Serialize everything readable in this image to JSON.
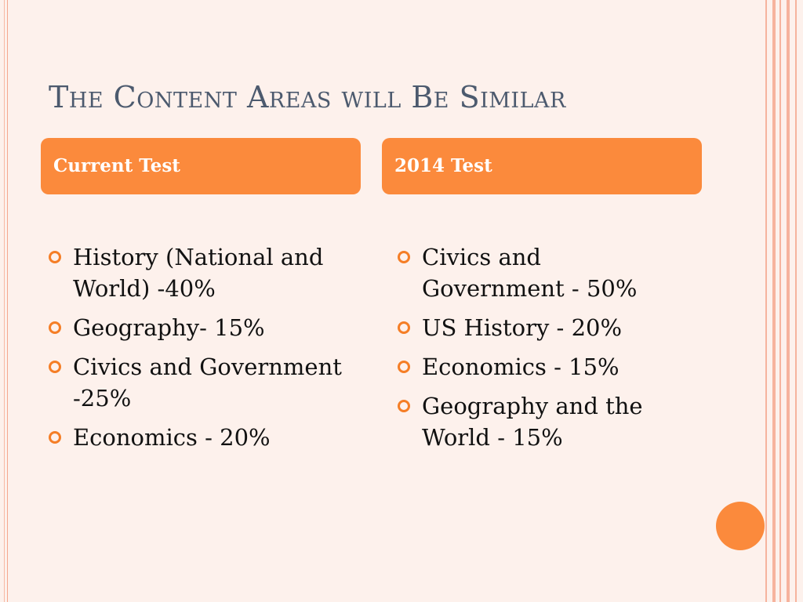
{
  "slide": {
    "title": "The Content Areas will Be Similar"
  },
  "columns": [
    {
      "header": "Current Test",
      "items": [
        "History (National and World) -40%",
        "Geography- 15%",
        "Civics and Government -25%",
        "Economics - 20%"
      ]
    },
    {
      "header": "2014 Test",
      "items": [
        "Civics and Government - 50%",
        "US History - 20%",
        "Economics - 15%",
        "Geography and the World - 15%"
      ]
    }
  ],
  "colors": {
    "accent": "#fb8a3c",
    "title": "#4c5a6e",
    "background": "#fdf1ec"
  },
  "icons": {
    "bullet": "ring-bullet-icon",
    "decoration": "orange-circle-icon"
  }
}
